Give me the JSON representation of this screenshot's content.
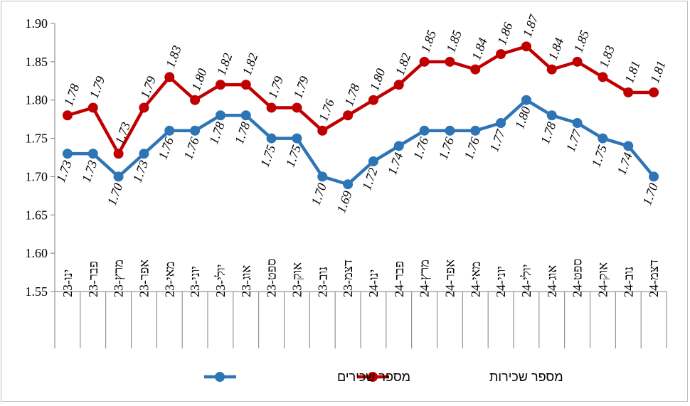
{
  "chart_data": {
    "type": "line",
    "title": "",
    "xlabel": "",
    "ylabel": "",
    "ylim": [
      1.55,
      1.9
    ],
    "yticks": [
      "1.90",
      "1.85",
      "1.80",
      "1.75",
      "1.70",
      "1.65",
      "1.60",
      "1.55"
    ],
    "grid": false,
    "legend_position": "bottom",
    "categories": [
      "ינו-23",
      "פבר-23",
      "מרץ-23",
      "אפר-23",
      "מאי-23",
      "יוני-23",
      "יולי-23",
      "אוג-23",
      "ספט-23",
      "אוק-23",
      "נוב-23",
      "דצמ-23",
      "ינו-24",
      "פבר-24",
      "מרץ-24",
      "אפר-24",
      "מאי-24",
      "יוני-24",
      "יולי-24",
      "אוג-24",
      "ספט-24",
      "אוק-24",
      "נוב-24",
      "דצמ-24"
    ],
    "series": [
      {
        "name": "מספר שכירות",
        "color": "#c00000",
        "values": [
          1.78,
          1.79,
          1.73,
          1.79,
          1.83,
          1.8,
          1.82,
          1.82,
          1.79,
          1.79,
          1.76,
          1.78,
          1.8,
          1.82,
          1.85,
          1.85,
          1.84,
          1.86,
          1.87,
          1.84,
          1.85,
          1.83,
          1.81,
          1.81
        ],
        "labels": [
          "1.78",
          "1.79",
          "1.73",
          "1.79",
          "1.83",
          "1.80",
          "1.82",
          "1.82",
          "1.79",
          "1.79",
          "1.76",
          "1.78",
          "1.80",
          "1.82",
          "1.85",
          "1.85",
          "1.84",
          "1.86",
          "1.87",
          "1.84",
          "1.85",
          "1.83",
          "1.81",
          "1.81"
        ]
      },
      {
        "name": "מספר שכירים",
        "color": "#2e75b6",
        "values": [
          1.73,
          1.73,
          1.7,
          1.73,
          1.76,
          1.76,
          1.78,
          1.78,
          1.75,
          1.75,
          1.7,
          1.69,
          1.72,
          1.74,
          1.76,
          1.76,
          1.76,
          1.77,
          1.8,
          1.78,
          1.77,
          1.75,
          1.74,
          1.7
        ],
        "labels": [
          "1.73",
          "1.73",
          "1.70",
          "1.73",
          "1.76",
          "1.76",
          "1.78",
          "1.78",
          "1.75",
          "1.75",
          "1.70",
          "1.69",
          "1.72",
          "1.74",
          "1.76",
          "1.76",
          "1.76",
          "1.77",
          "1.80",
          "1.78",
          "1.77",
          "1.75",
          "1.74",
          "1.70"
        ]
      }
    ]
  }
}
